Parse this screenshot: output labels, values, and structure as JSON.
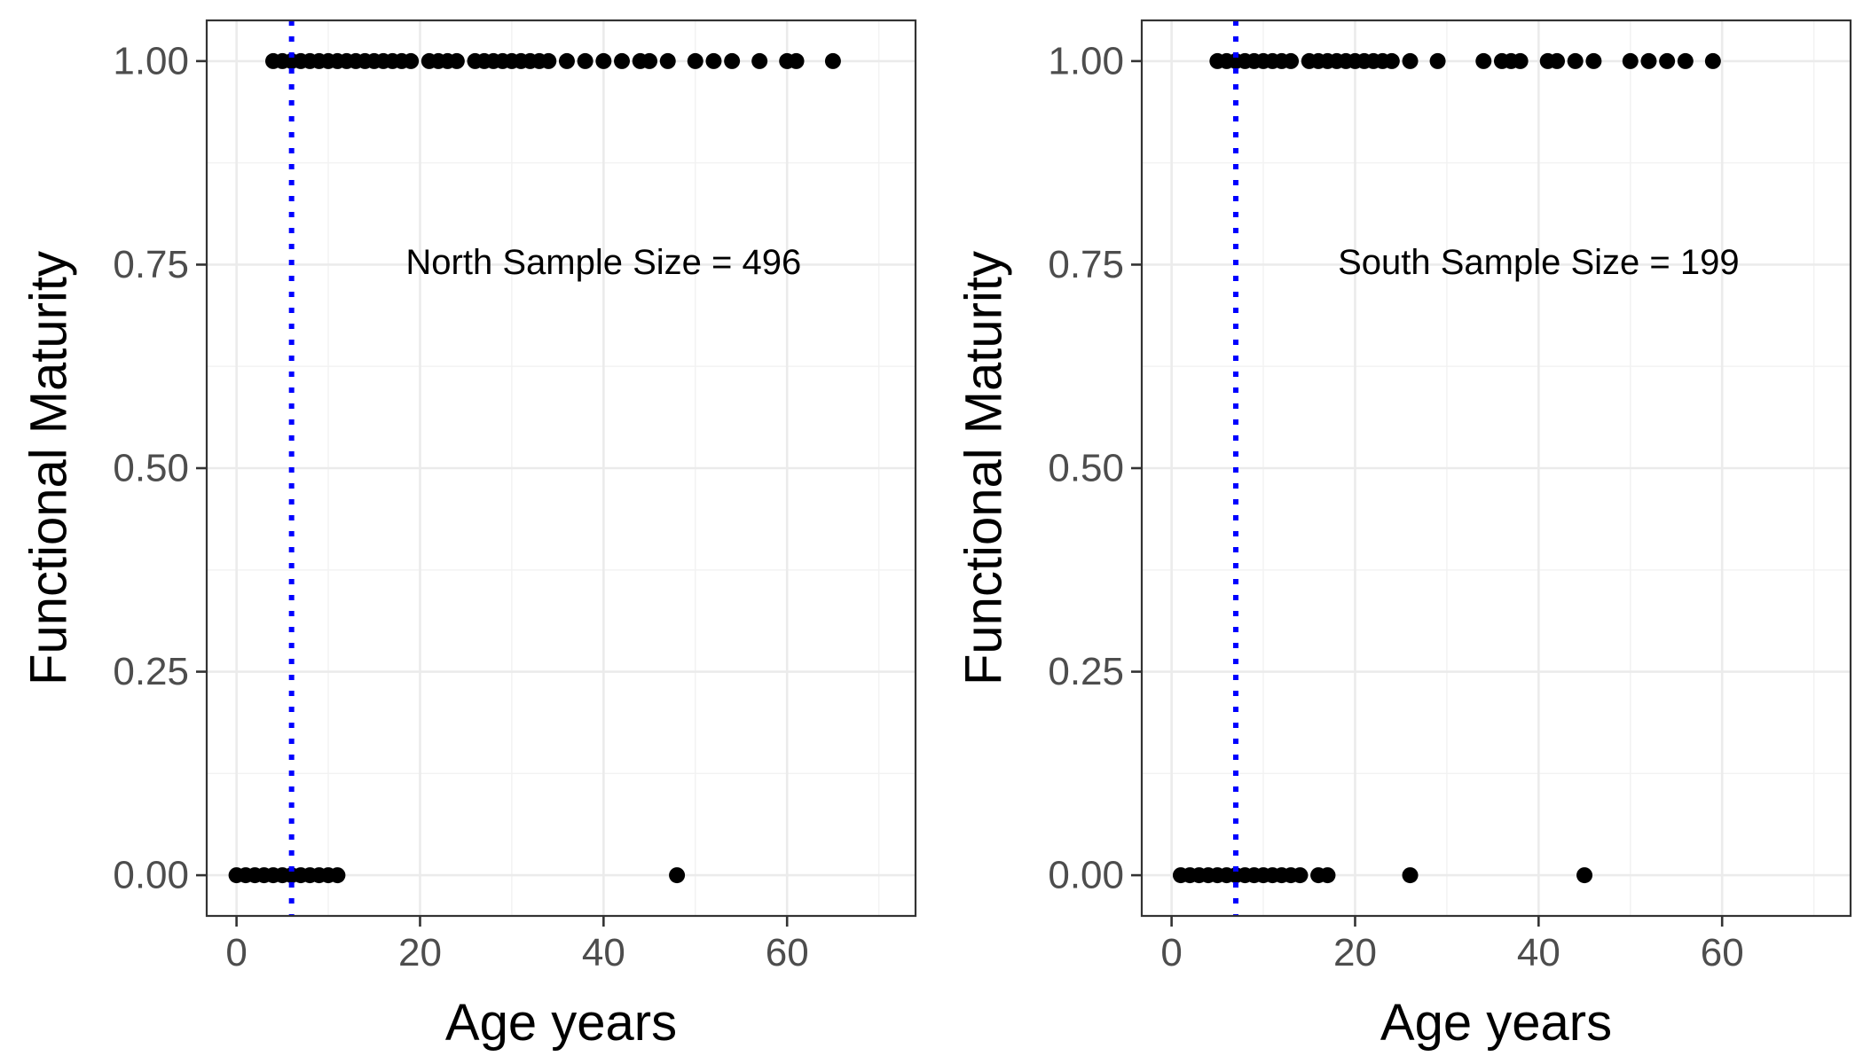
{
  "chart_data": [
    {
      "type": "scatter",
      "xlabel": "Age years",
      "ylabel": "Functional Maturity",
      "annotation": "North Sample Size = 496",
      "xlim": [
        -3.25,
        74
      ],
      "ylim": [
        -0.05,
        1.05
      ],
      "x_ticks": [
        0,
        20,
        40,
        60
      ],
      "y_ticks": [
        0.0,
        0.25,
        0.5,
        0.75,
        1.0
      ],
      "x_tick_labels": [
        "0",
        "20",
        "40",
        "60"
      ],
      "y_tick_labels": [
        "0.00",
        "0.25",
        "0.50",
        "0.75",
        "1.00"
      ],
      "grid": true,
      "vline": {
        "x": 6,
        "color": "#0000ff",
        "style": "dotted"
      },
      "point_color": "#000000",
      "series": [
        {
          "x": [
            4,
            5,
            6,
            7,
            8,
            9,
            10,
            11,
            12,
            13,
            14,
            15,
            16,
            17,
            18,
            19,
            21,
            22,
            23,
            24,
            26,
            27,
            28,
            29,
            30,
            31,
            32,
            33,
            34,
            36,
            38,
            40,
            42,
            44,
            45,
            47,
            50,
            52,
            54,
            57,
            60,
            61,
            65,
            0,
            1,
            2,
            3,
            4,
            5,
            6,
            7,
            8,
            9,
            10,
            11,
            48
          ],
          "y": [
            1,
            1,
            1,
            1,
            1,
            1,
            1,
            1,
            1,
            1,
            1,
            1,
            1,
            1,
            1,
            1,
            1,
            1,
            1,
            1,
            1,
            1,
            1,
            1,
            1,
            1,
            1,
            1,
            1,
            1,
            1,
            1,
            1,
            1,
            1,
            1,
            1,
            1,
            1,
            1,
            1,
            1,
            1,
            0,
            0,
            0,
            0,
            0,
            0,
            0,
            0,
            0,
            0,
            0,
            0,
            0
          ]
        }
      ]
    },
    {
      "type": "scatter",
      "xlabel": "Age years",
      "ylabel": "Functional Maturity",
      "annotation": "South Sample Size = 199",
      "xlim": [
        -3.25,
        74
      ],
      "ylim": [
        -0.05,
        1.05
      ],
      "x_ticks": [
        0,
        20,
        40,
        60
      ],
      "y_ticks": [
        0.0,
        0.25,
        0.5,
        0.75,
        1.0
      ],
      "x_tick_labels": [
        "0",
        "20",
        "40",
        "60"
      ],
      "y_tick_labels": [
        "0.00",
        "0.25",
        "0.50",
        "0.75",
        "1.00"
      ],
      "grid": true,
      "vline": {
        "x": 7,
        "color": "#0000ff",
        "style": "dotted"
      },
      "point_color": "#000000",
      "series": [
        {
          "x": [
            5,
            6,
            7,
            8,
            9,
            10,
            11,
            12,
            13,
            15,
            16,
            17,
            18,
            19,
            20,
            21,
            22,
            23,
            24,
            26,
            29,
            34,
            36,
            37,
            38,
            41,
            42,
            44,
            46,
            50,
            52,
            54,
            56,
            59,
            1,
            2,
            3,
            4,
            5,
            6,
            7,
            8,
            9,
            10,
            11,
            12,
            13,
            14,
            16,
            17,
            26,
            45
          ],
          "y": [
            1,
            1,
            1,
            1,
            1,
            1,
            1,
            1,
            1,
            1,
            1,
            1,
            1,
            1,
            1,
            1,
            1,
            1,
            1,
            1,
            1,
            1,
            1,
            1,
            1,
            1,
            1,
            1,
            1,
            1,
            1,
            1,
            1,
            1,
            0,
            0,
            0,
            0,
            0,
            0,
            0,
            0,
            0,
            0,
            0,
            0,
            0,
            0,
            0,
            0,
            0,
            0
          ]
        }
      ]
    }
  ]
}
